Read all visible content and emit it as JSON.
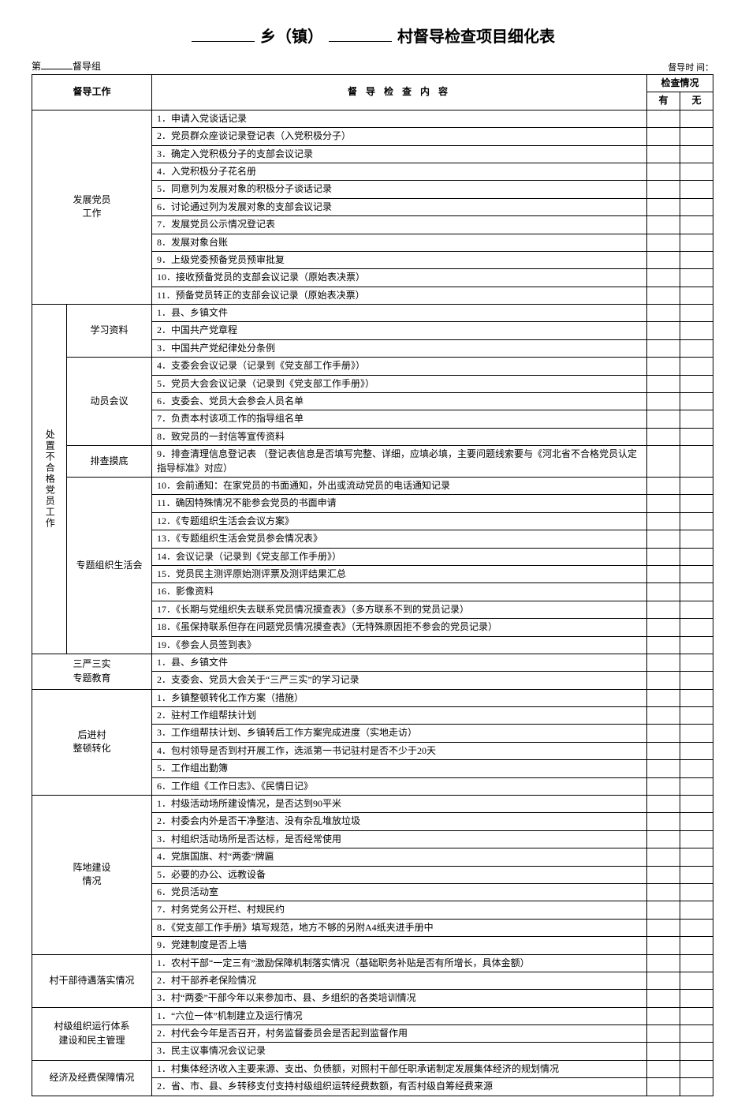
{
  "title": {
    "part1": "乡（镇）",
    "part2": "村督导检查项目细化表"
  },
  "meta": {
    "left_prefix": "第",
    "left_suffix": "督导组",
    "right_label": "督导时\n间："
  },
  "headers": {
    "work": "督导工作",
    "content": "督 导 检 查 内 容",
    "status": "检查情况",
    "yes": "有",
    "no": "无"
  },
  "sections": [
    {
      "name": "发展党员工作",
      "merged": true,
      "label": "发展党员\n工作",
      "items": [
        "1．申请入党谈话记录",
        "2．党员群众座谈记录登记表（入党积极分子）",
        "3．确定入党积极分子的支部会议记录",
        "4．入党积极分子花名册",
        "5．同意列为发展对象的积极分子谈话记录",
        "6．讨论通过列为发展对象的支部会议记录",
        "7．发展党员公示情况登记表",
        "8．发展对象台账",
        "9．上级党委预备党员预审批复",
        "10．接收预备党员的支部会议记录（原始表决票）",
        "11．预备党员转正的支部会议记录（原始表决票）"
      ]
    },
    {
      "name": "处置不合格党员工作",
      "vertical": true,
      "label": "处置不合格党员工作",
      "subgroups": [
        {
          "label": "学习资料",
          "items": [
            "1．县、乡镇文件",
            "2．中国共产党章程",
            "3．中国共产党纪律处分条例"
          ]
        },
        {
          "label": "动员会议",
          "items": [
            "4．支委会会议记录（记录到《党支部工作手册》）",
            "5．党员大会会议记录（记录到《党支部工作手册》）",
            "6．支委会、党员大会参会人员名单",
            "7．负责本村该项工作的指导组名单",
            "8．致党员的一封信等宣传资料"
          ]
        },
        {
          "label": "排查摸底",
          "items": [
            "9．排查清理信息登记表 （登记表信息是否填写完整、详细，应填必填，主要问题线索要与《河北省不合格党员认定指导标准》对应）"
          ]
        },
        {
          "label": "专题组织生活会",
          "items": [
            "10．会前通知：在家党员的书面通知，外出或流动党员的电话通知记录",
            "11．确因特殊情况不能参会党员的书面申请",
            "12．《专题组织生活会会议方案》",
            "13．《专题组织生活会党员参会情况表》",
            "14．会议记录（记录到《党支部工作手册》）",
            "15．党员民主测评原始测评票及测评结果汇总",
            "16．影像资料",
            "17．《长期与党组织失去联系党员情况摸查表》（多方联系不到的党员记录）",
            "18．《虽保持联系但存在问题党员情况摸查表》（无特殊原因拒不参会的党员记录）",
            "19．《参会人员签到表》"
          ]
        }
      ]
    },
    {
      "name": "三严三实专题教育",
      "merged": true,
      "label": "三严三实\n专题教育",
      "items": [
        "1．县、乡镇文件",
        "2．支委会、党员大会关于“三严三实”的学习记录"
      ]
    },
    {
      "name": "后进村整顿转化",
      "merged": true,
      "label": "后进村\n整顿转化",
      "items": [
        "1．乡镇整顿转化工作方案（措施）",
        "2．驻村工作组帮扶计划",
        "3．工作组帮扶计划、乡镇转后工作方案完成进度（实地走访）",
        "4．包村领导是否到村开展工作，选派第一书记驻村是否不少于20天",
        "5．工作组出勤簿",
        "6．工作组《工作日志》、《民情日记》"
      ]
    },
    {
      "name": "阵地建设情况",
      "merged": true,
      "label": "阵地建设\n情况",
      "items": [
        "1．村级活动场所建设情况，是否达到90平米",
        "2．村委会内外是否干净整洁、没有杂乱堆放垃圾",
        "3．村组织活动场所是否达标，是否经常使用",
        "4．党旗国旗、村“两委”牌匾",
        "5．必要的办公、远教设备",
        "6．党员活动室",
        "7．村务党务公开栏、村规民约",
        "8．《党支部工作手册》填写规范，地方不够的另附A4纸夹进手册中",
        "9．党建制度是否上墙"
      ]
    },
    {
      "name": "村干部待遇落实情况",
      "merged": true,
      "label": "村干部待遇落实情况",
      "items": [
        "1．农村干部“一定三有”激励保障机制落实情况（基础职务补贴是否有所增长，具体金额）",
        "2．村干部养老保险情况",
        "3．村“两委”干部今年以来参加市、县、乡组织的各类培训情况"
      ]
    },
    {
      "name": "村级组织运行体系建设和民主管理",
      "merged": true,
      "label": "村级组织运行体系\n建设和民主管理",
      "items": [
        "1．“六位一体”机制建立及运行情况",
        "2．村代会今年是否召开，村务监督委员会是否起到监督作用",
        "3．民主议事情况会议记录"
      ]
    },
    {
      "name": "经济及经费保障情况",
      "merged": true,
      "label": "经济及经费保障情况",
      "items": [
        "1．村集体经济收入主要来源、支出、负债额，对照村干部任职承诺制定发展集体经济的规划情况",
        "2．省、市、县、乡转移支付支持村级组织运转经费数额，有否村级自筹经费来源"
      ]
    }
  ]
}
